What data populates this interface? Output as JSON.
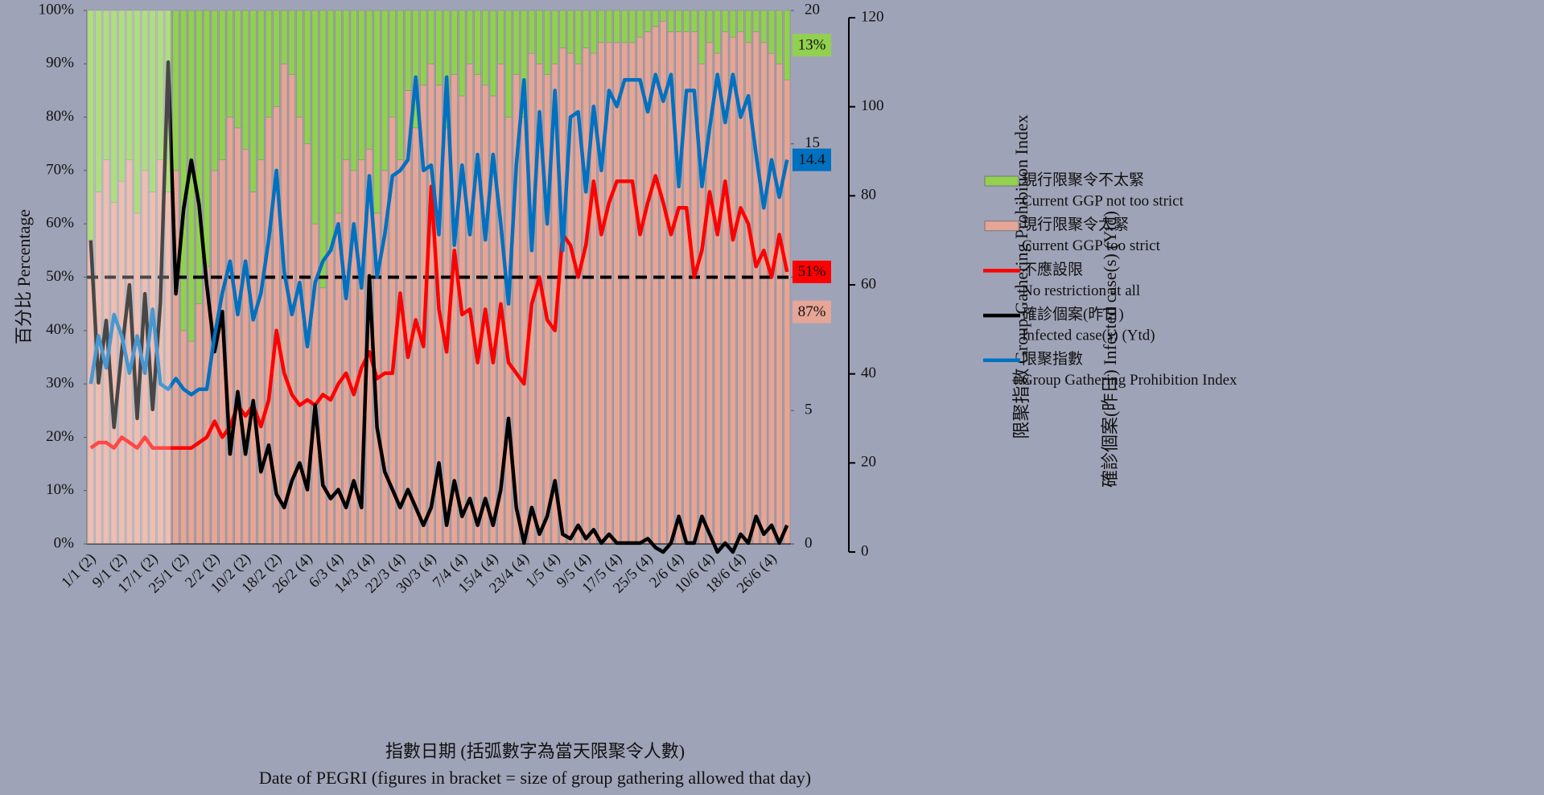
{
  "chart_data": {
    "type": "bar",
    "stacked": true,
    "x_title": [
      "指數日期 (括弧數字為當天限聚令人數)",
      "Date of PEGRI (figures in bracket = size of group gathering allowed that day)"
    ],
    "y_title": "百分比 Percentage",
    "y2_title": "限聚指數 Group Gathering Prohibition Index",
    "y3_title": "確診個案(昨日) Infected case(s) (Ytd)",
    "categories": [
      "1/1 (2)",
      null,
      null,
      null,
      "9/1 (2)",
      null,
      null,
      null,
      "17/1 (2)",
      null,
      null,
      null,
      "25/1 (2)",
      null,
      null,
      null,
      "2/2 (2)",
      null,
      null,
      null,
      "10/2 (2)",
      null,
      null,
      null,
      "18/2 (2)",
      null,
      null,
      null,
      "26/2 (4)",
      null,
      null,
      null,
      "6/3 (4)",
      null,
      null,
      null,
      "14/3 (4)",
      null,
      null,
      null,
      "22/3 (4)",
      null,
      null,
      null,
      "30/3 (4)",
      null,
      null,
      null,
      "7/4 (4)",
      null,
      null,
      null,
      "15/4 (4)",
      null,
      null,
      null,
      "23/4 (4)",
      null,
      null,
      null,
      "1/5 (4)",
      null,
      null,
      null,
      "9/5 (4)",
      null,
      null,
      null,
      "17/5 (4)",
      null,
      null,
      null,
      "25/5 (4)",
      null,
      null,
      null,
      "2/6 (4)",
      null,
      null,
      null,
      "10/6 (4)",
      null,
      null,
      null,
      "18/6 (4)",
      null,
      null,
      null,
      "26/6 (4)",
      null,
      null
    ],
    "ylim": [
      0,
      100
    ],
    "yticks": [
      {
        "value": 0,
        "label": "0%"
      },
      {
        "value": 10,
        "label": "10%"
      },
      {
        "value": 20,
        "label": "20%"
      },
      {
        "value": 30,
        "label": "30%"
      },
      {
        "value": 40,
        "label": "40%"
      },
      {
        "value": 50,
        "label": "50%"
      },
      {
        "value": 60,
        "label": "60%"
      },
      {
        "value": 70,
        "label": "70%"
      },
      {
        "value": 80,
        "label": "80%"
      },
      {
        "value": 90,
        "label": "90%"
      },
      {
        "value": 100,
        "label": "100%"
      }
    ],
    "y2lim": [
      0,
      20
    ],
    "y2ticks": [
      0,
      5,
      10,
      15,
      20
    ],
    "y3lim": [
      0,
      120
    ],
    "y3ticks": [
      0,
      20,
      40,
      60,
      80,
      100,
      120
    ],
    "reference_line": 50,
    "series": [
      {
        "name": "現行限聚令太緊",
        "name_en": "Current GGP too strict",
        "type": "bar",
        "color": "#e6a596",
        "end_label": "87%",
        "values": [
          57,
          66,
          72,
          64,
          68,
          72,
          62,
          70,
          66,
          72,
          66,
          70,
          40,
          38,
          45,
          52,
          70,
          72,
          80,
          78,
          74,
          66,
          72,
          80,
          82,
          90,
          88,
          80,
          75,
          60,
          48,
          55,
          62,
          72,
          70,
          72,
          74,
          62,
          70,
          80,
          72,
          85,
          78,
          86,
          90,
          86,
          78,
          88,
          84,
          90,
          88,
          86,
          84,
          90,
          80,
          88,
          80,
          92,
          90,
          88,
          90,
          93,
          92,
          90,
          93,
          92,
          94,
          94,
          94,
          94,
          94,
          95,
          96,
          97,
          98,
          96,
          96,
          96,
          96,
          90,
          94,
          92,
          96,
          95,
          96,
          94,
          96,
          94,
          92,
          90,
          87
        ]
      },
      {
        "name": "現行限聚令不太緊",
        "name_en": "Current GGP not too strict",
        "type": "bar",
        "color": "#92d050",
        "end_label": "13%",
        "values": [
          43,
          34,
          28,
          36,
          32,
          28,
          38,
          30,
          34,
          28,
          34,
          30,
          60,
          62,
          55,
          48,
          30,
          28,
          20,
          22,
          26,
          34,
          28,
          20,
          18,
          10,
          12,
          20,
          25,
          40,
          52,
          45,
          38,
          28,
          30,
          28,
          26,
          38,
          30,
          20,
          28,
          15,
          22,
          14,
          10,
          14,
          22,
          12,
          16,
          10,
          12,
          14,
          16,
          10,
          20,
          12,
          20,
          8,
          10,
          12,
          10,
          7,
          8,
          10,
          7,
          8,
          6,
          6,
          6,
          6,
          6,
          5,
          4,
          3,
          2,
          4,
          4,
          4,
          4,
          10,
          6,
          8,
          4,
          5,
          4,
          6,
          4,
          6,
          8,
          10,
          13
        ]
      },
      {
        "name": "不應設限",
        "name_en": "No restriction at all",
        "type": "line",
        "color": "#ff0000",
        "end_label": "51%",
        "values": [
          18,
          19,
          19,
          18,
          20,
          19,
          18,
          20,
          18,
          18,
          18,
          18,
          18,
          18,
          19,
          20,
          23,
          20,
          22,
          26,
          24,
          26,
          22,
          27,
          40,
          32,
          28,
          26,
          27,
          26,
          28,
          27,
          30,
          32,
          28,
          33,
          36,
          31,
          32,
          32,
          47,
          35,
          42,
          37,
          67,
          44,
          36,
          55,
          43,
          44,
          34,
          44,
          34,
          45,
          34,
          32,
          30,
          45,
          50,
          42,
          40,
          58,
          56,
          50,
          56,
          68,
          58,
          64,
          68,
          68,
          68,
          58,
          64,
          69,
          64,
          58,
          63,
          63,
          50,
          55,
          66,
          58,
          68,
          57,
          63,
          60,
          52,
          55,
          50,
          58,
          51
        ]
      },
      {
        "name": "確診個案(昨日)",
        "name_en": "Infected case(s) (Ytd)",
        "type": "line",
        "axis": "y3",
        "color": "#000000",
        "values": [
          70,
          38,
          52,
          28,
          45,
          60,
          30,
          58,
          32,
          56,
          110,
          58,
          77,
          88,
          78,
          60,
          45,
          54,
          22,
          36,
          22,
          34,
          18,
          24,
          13,
          10,
          16,
          20,
          14,
          33,
          15,
          12,
          14,
          10,
          16,
          10,
          62,
          28,
          18,
          14,
          10,
          14,
          10,
          6,
          10,
          20,
          6,
          16,
          8,
          12,
          6,
          12,
          6,
          14,
          30,
          10,
          2,
          10,
          4,
          8,
          16,
          4,
          3,
          6,
          3,
          5,
          2,
          4,
          2,
          2,
          2,
          2,
          3,
          1,
          0,
          2,
          8,
          2,
          2,
          8,
          4,
          0,
          2,
          0,
          4,
          2,
          8,
          4,
          6,
          2,
          6
        ]
      },
      {
        "name": "限聚指數",
        "name_en": "Group Gathering Prohibition Index",
        "type": "line",
        "axis": "y2",
        "color": "#0070c0",
        "end_label": "14.4",
        "values": [
          6,
          7.8,
          6.6,
          8.6,
          7.8,
          6.4,
          7.8,
          6.4,
          8.8,
          6,
          5.8,
          6.2,
          5.8,
          5.6,
          5.8,
          5.8,
          7.8,
          9.4,
          10.6,
          8.6,
          10.6,
          8.4,
          9.4,
          11.4,
          14,
          10.2,
          8.6,
          9.8,
          7.4,
          9.8,
          10.6,
          11,
          12,
          9.2,
          12,
          9.6,
          13.8,
          10,
          11.6,
          13.8,
          14,
          14.4,
          17.5,
          14,
          14.2,
          11.6,
          17.5,
          11.2,
          14.2,
          11.6,
          14.6,
          11.4,
          14.6,
          12,
          9,
          14.2,
          17.4,
          11,
          16.2,
          12,
          17,
          11,
          16,
          16.2,
          13.2,
          16.4,
          14,
          17,
          16.4,
          17.4,
          17.4,
          17.4,
          16.2,
          17.6,
          16.6,
          17.6,
          13.4,
          17,
          17,
          13.4,
          15.6,
          17.6,
          15.8,
          17.6,
          16,
          16.8,
          14.6,
          12.6,
          14.4,
          13,
          14.4
        ]
      }
    ]
  }
}
